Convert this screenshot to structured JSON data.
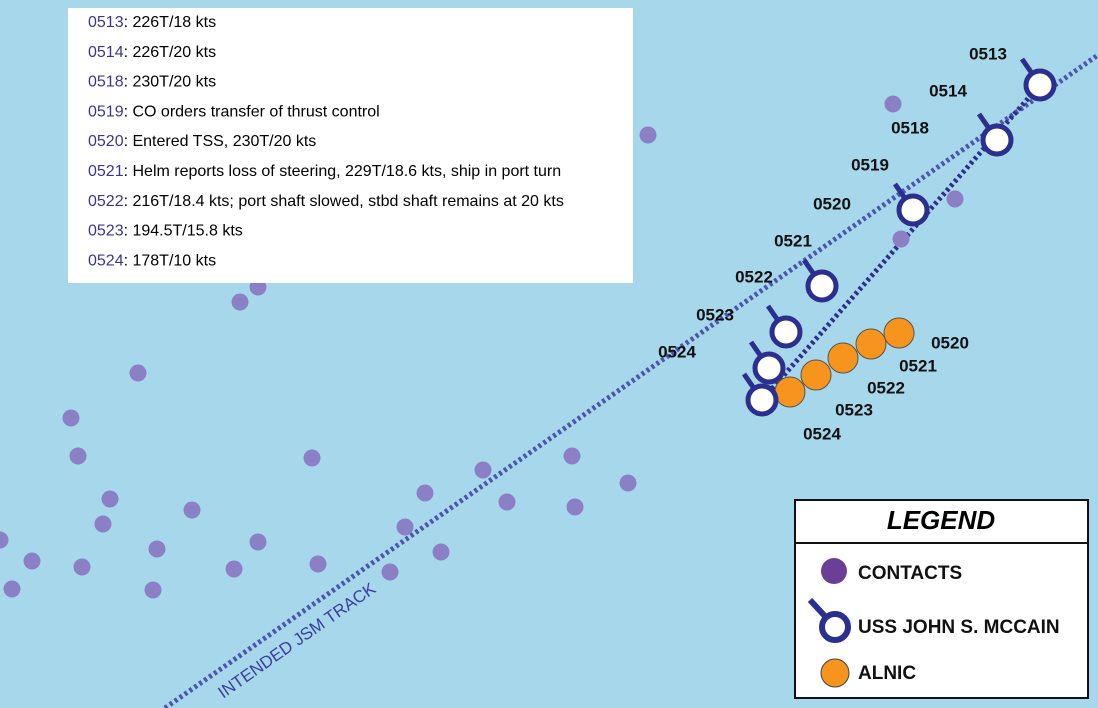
{
  "timeline": [
    {
      "time": "0513",
      "text": ": 226T/18 kts"
    },
    {
      "time": "0514",
      "text": ": 226T/20 kts"
    },
    {
      "time": "0518",
      "text": ": 230T/20 kts"
    },
    {
      "time": "0519",
      "text": ": CO orders transfer of thrust control"
    },
    {
      "time": "0520",
      "text": ": Entered TSS,  230T/20 kts"
    },
    {
      "time": "0521",
      "text": ": Helm reports loss of steering, 229T/18.6 kts, ship in port turn"
    },
    {
      "time": "0522",
      "text": ": 216T/18.4 kts; port shaft slowed, stbd shaft remains at 20 kts"
    },
    {
      "time": "0523",
      "text": ": 194.5T/15.8 kts"
    },
    {
      "time": "0524",
      "text": ": 178T/10 kts"
    }
  ],
  "ship_labels": [
    "0513",
    "0514",
    "0518",
    "0519",
    "0520",
    "0521",
    "0522",
    "0523",
    "0524"
  ],
  "alnic_labels": [
    "0520",
    "0521",
    "0522",
    "0523",
    "0524"
  ],
  "track_label": "INTENDED JSM TRACK",
  "legend": {
    "title": "LEGEND",
    "items": [
      "CONTACTS",
      "USS JOHN S. MCCAIN",
      "ALNIC"
    ]
  }
}
